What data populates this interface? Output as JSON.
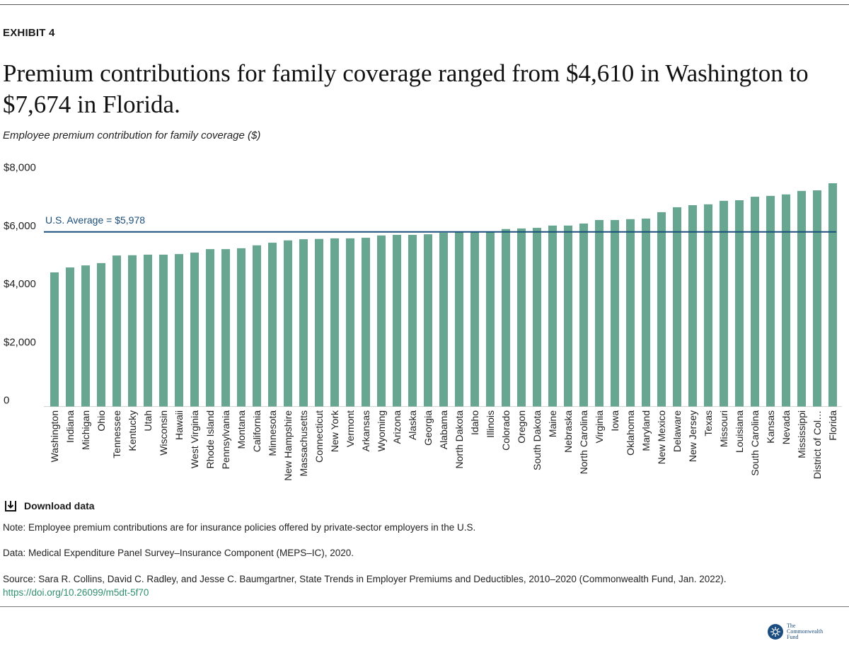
{
  "header": {
    "exhibit": "EXHIBIT 4",
    "title": "Premium contributions for family coverage ranged from $4,610 in Washington to $7,674 in Florida.",
    "subtitle": "Employee premium contribution for family coverage ($)"
  },
  "chart_data": {
    "type": "bar",
    "ylabel": "Employee premium contribution for family coverage ($)",
    "ylim": [
      0,
      8000
    ],
    "yticks": [
      0,
      2000,
      4000,
      6000,
      8000
    ],
    "ytick_labels": [
      "0",
      "$2,000",
      "$4,000",
      "$6,000",
      "$8,000"
    ],
    "grid": false,
    "bar_color": "#67a690",
    "reference_line": {
      "value": 5978,
      "label": "U.S. Average = $5,978",
      "color": "#1a4e7a"
    },
    "categories": [
      "Washington",
      "Indiana",
      "Michigan",
      "Ohio",
      "Tennessee",
      "Kentucky",
      "Utah",
      "Wisconsin",
      "Hawaii",
      "West Virginia",
      "Rhode Island",
      "Pennsylvania",
      "Montana",
      "California",
      "Minnesota",
      "New Hampshire",
      "Massachusetts",
      "Connecticut",
      "New York",
      "Vermont",
      "Arkansas",
      "Wyoming",
      "Arizona",
      "Alaska",
      "Georgia",
      "Alabama",
      "North Dakota",
      "Idaho",
      "Illinois",
      "Colorado",
      "Oregon",
      "South Dakota",
      "Maine",
      "Nebraska",
      "North Carolina",
      "Virginia",
      "Iowa",
      "Oklahoma",
      "Maryland",
      "New Mexico",
      "Delaware",
      "New Jersey",
      "Texas",
      "Missouri",
      "Louisiana",
      "South Carolina",
      "Kansas",
      "Nevada",
      "Mississippi",
      "District of Col…",
      "Florida"
    ],
    "values": [
      4610,
      4780,
      4850,
      4930,
      5190,
      5200,
      5220,
      5220,
      5240,
      5290,
      5410,
      5410,
      5440,
      5540,
      5630,
      5710,
      5750,
      5760,
      5780,
      5780,
      5800,
      5880,
      5900,
      5900,
      5920,
      5970,
      6020,
      6020,
      6020,
      6100,
      6120,
      6140,
      6220,
      6220,
      6290,
      6410,
      6410,
      6440,
      6460,
      6680,
      6850,
      6920,
      6950,
      7070,
      7090,
      7210,
      7240,
      7290,
      7410,
      7430,
      7674
    ]
  },
  "footer": {
    "download_label": "Download data",
    "note": "Note: Employee premium contributions are for insurance policies offered by private-sector employers in the U.S.",
    "data_source": "Data: Medical Expenditure Panel Survey–Insurance Component (MEPS–IC), 2020.",
    "source": "Source: Sara R. Collins, David C. Radley, and Jesse C. Baumgartner, State Trends in Employer Premiums and Deductibles, 2010–2020 (Commonwealth Fund, Jan. 2022).",
    "doi": "https://doi.org/10.26099/m5dt-5f70",
    "logo": "The Commonwealth Fund"
  }
}
